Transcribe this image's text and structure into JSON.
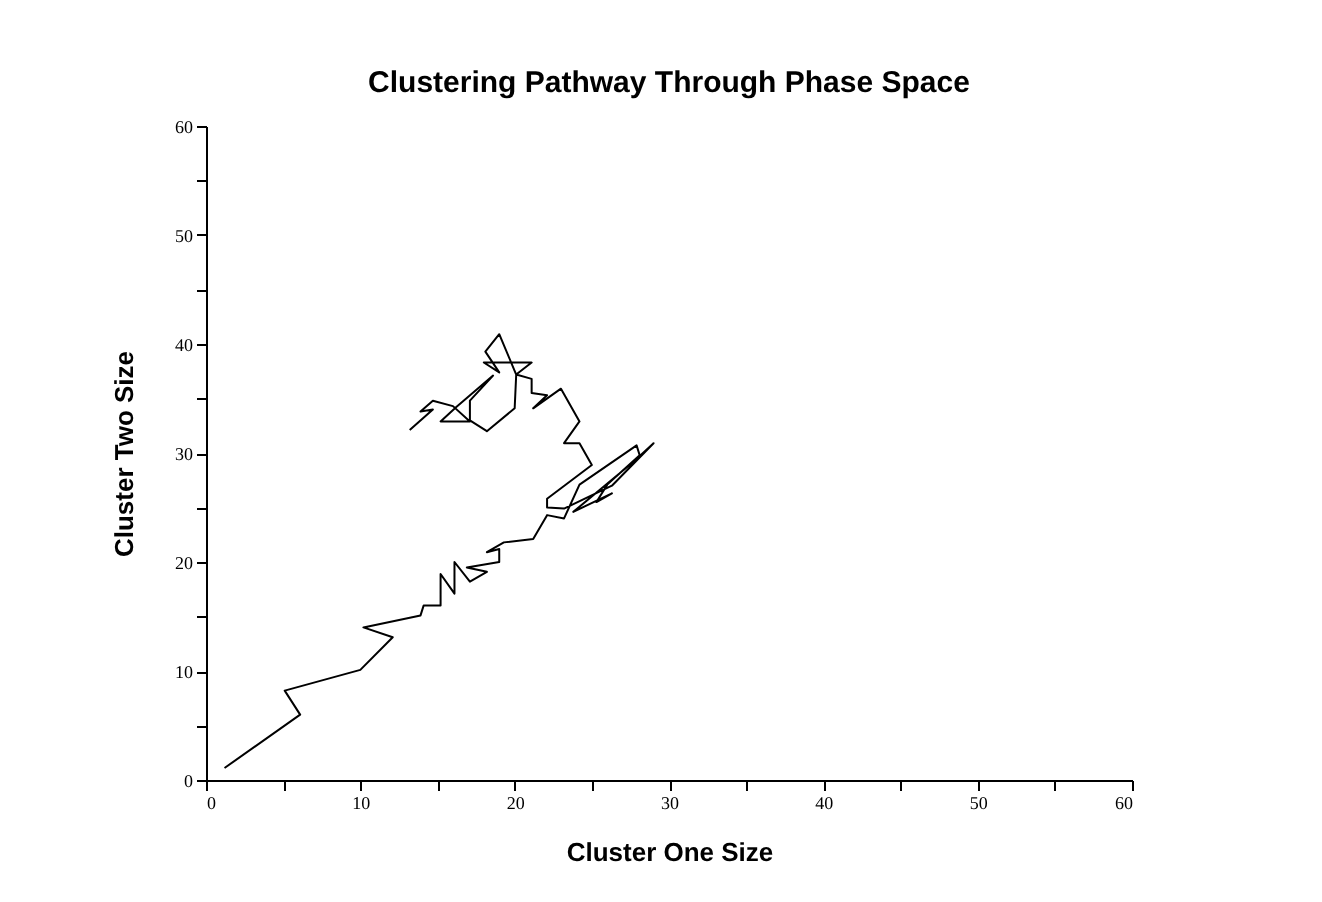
{
  "chart_data": {
    "type": "line",
    "title": "Clustering Pathway Through Phase Space",
    "xlabel": "Cluster One Size",
    "ylabel": "Cluster Two Size",
    "xlim": [
      0,
      60
    ],
    "ylim": [
      0,
      60
    ],
    "xticks": [
      0,
      {
        "value": 5,
        "label": null
      },
      10,
      {
        "value": 15,
        "label": null
      },
      20,
      {
        "value": 25,
        "label": null
      },
      30,
      {
        "value": 35,
        "label": null
      },
      40,
      {
        "value": 45,
        "label": null
      },
      50,
      {
        "value": 55,
        "label": null
      },
      60
    ],
    "yticks": [
      0,
      {
        "value": 5,
        "label": null
      },
      10,
      {
        "value": 15,
        "label": null
      },
      20,
      {
        "value": 25,
        "label": null
      },
      30,
      {
        "value": 35,
        "label": null
      },
      40,
      {
        "value": 45,
        "label": null
      },
      50,
      {
        "value": 55,
        "label": null
      },
      60
    ],
    "grid": false,
    "legend": false,
    "marker": "none",
    "line_style": "solid",
    "series": [
      {
        "color": "#000000",
        "x": [
          1.2,
          6.1,
          5.1,
          10.0,
          12.1,
          10.2,
          13.9,
          14.1,
          15.2,
          15.2,
          16.1,
          16.1,
          17.1,
          18.2,
          16.9,
          19.0,
          19.0,
          18.2,
          19.3,
          21.2,
          22.1,
          23.2,
          24.2,
          27.9,
          28.1,
          26.0,
          25.3,
          26.3,
          23.8,
          27.7,
          29.0,
          26.3,
          23.2,
          22.1,
          22.1,
          25.0,
          24.2,
          23.2,
          24.2,
          23.0,
          21.2,
          22.1,
          21.1,
          21.1,
          20.1,
          21.1,
          18.0,
          19.0,
          18.1,
          19.0,
          20.1,
          20.0,
          18.2,
          17.1,
          17.1,
          18.6,
          16.2,
          15.2,
          17.1,
          16.0,
          14.7,
          13.9,
          14.7,
          13.2
        ],
        "values": [
          1.1,
          6.0,
          8.2,
          10.1,
          13.1,
          14.0,
          15.1,
          16.0,
          16.0,
          18.9,
          17.1,
          20.0,
          18.2,
          19.1,
          19.5,
          20.0,
          21.2,
          20.9,
          21.8,
          22.1,
          24.3,
          24.0,
          27.1,
          30.7,
          29.8,
          27.1,
          25.5,
          26.3,
          24.6,
          29.2,
          30.9,
          27.0,
          24.9,
          25.0,
          25.8,
          28.9,
          30.9,
          30.9,
          32.9,
          35.9,
          34.1,
          35.3,
          35.5,
          36.8,
          37.2,
          38.3,
          38.3,
          37.4,
          39.3,
          40.9,
          37.2,
          34.1,
          32.0,
          33.0,
          34.8,
          37.1,
          34.2,
          32.9,
          32.9,
          34.3,
          34.8,
          33.8,
          34.0,
          32.1
        ]
      }
    ]
  }
}
